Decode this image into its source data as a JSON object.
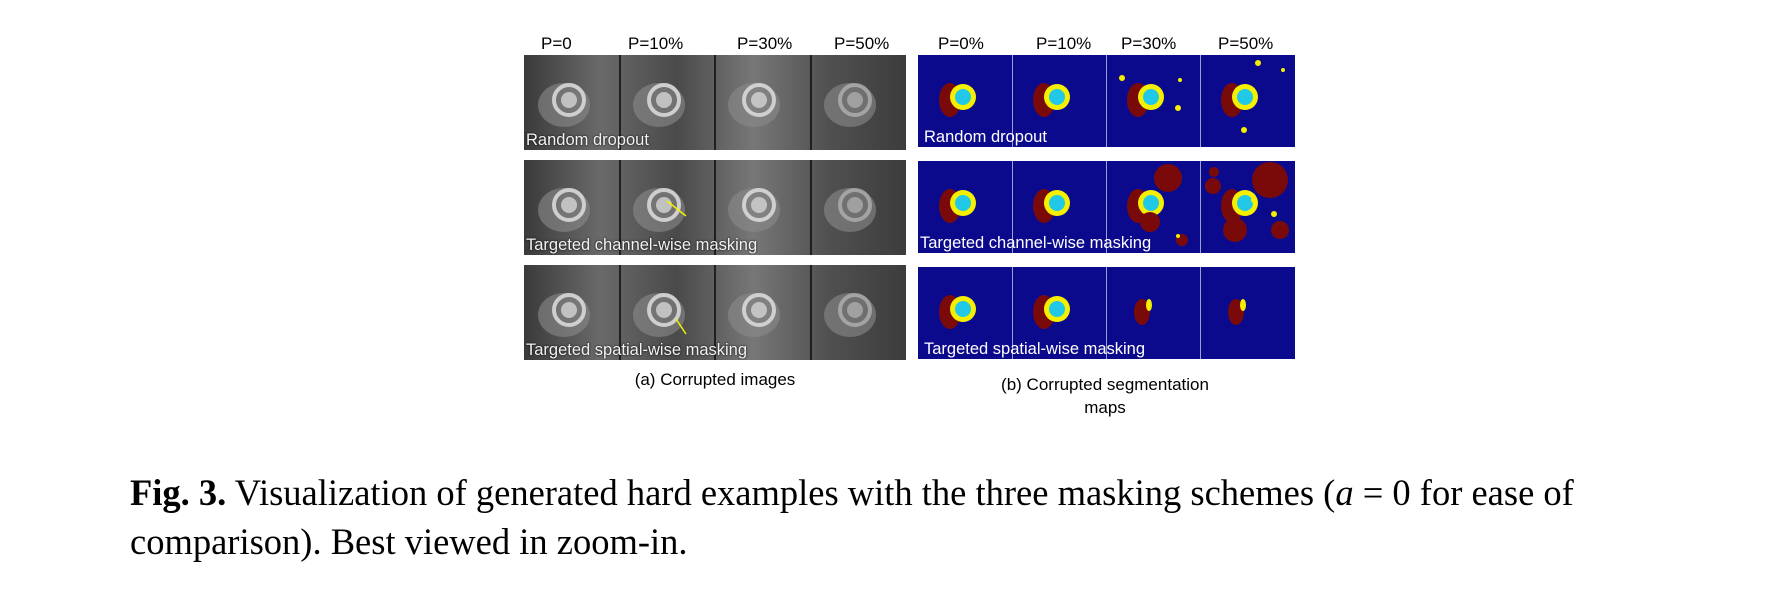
{
  "panel_a": {
    "column_labels": [
      "P=0",
      "P=10%",
      "P=30%",
      "P=50%"
    ],
    "rows": [
      "Random dropout",
      "Targeted channel-wise masking",
      "Targeted spatial-wise masking"
    ],
    "caption": "(a) Corrupted images"
  },
  "panel_b": {
    "column_labels": [
      "P=0%",
      "P=10%",
      "P=30%",
      "P=50%"
    ],
    "rows": [
      "Random dropout",
      "Targeted channel-wise masking",
      "Targeted spatial-wise masking"
    ],
    "caption": "(b) Corrupted segmentation maps"
  },
  "caption": {
    "label": "Fig. 3.",
    "text_before": "Visualization of generated hard examples with the three masking schemes (",
    "math_var": "a",
    "text_after": " = 0 for ease of comparison). Best viewed in zoom-in."
  },
  "colors": {
    "background_seg": "#0c0a8c",
    "myocardium": "#f5f000",
    "cavity": "#22c8e8",
    "right_ventricle": "#7a0a0a"
  }
}
